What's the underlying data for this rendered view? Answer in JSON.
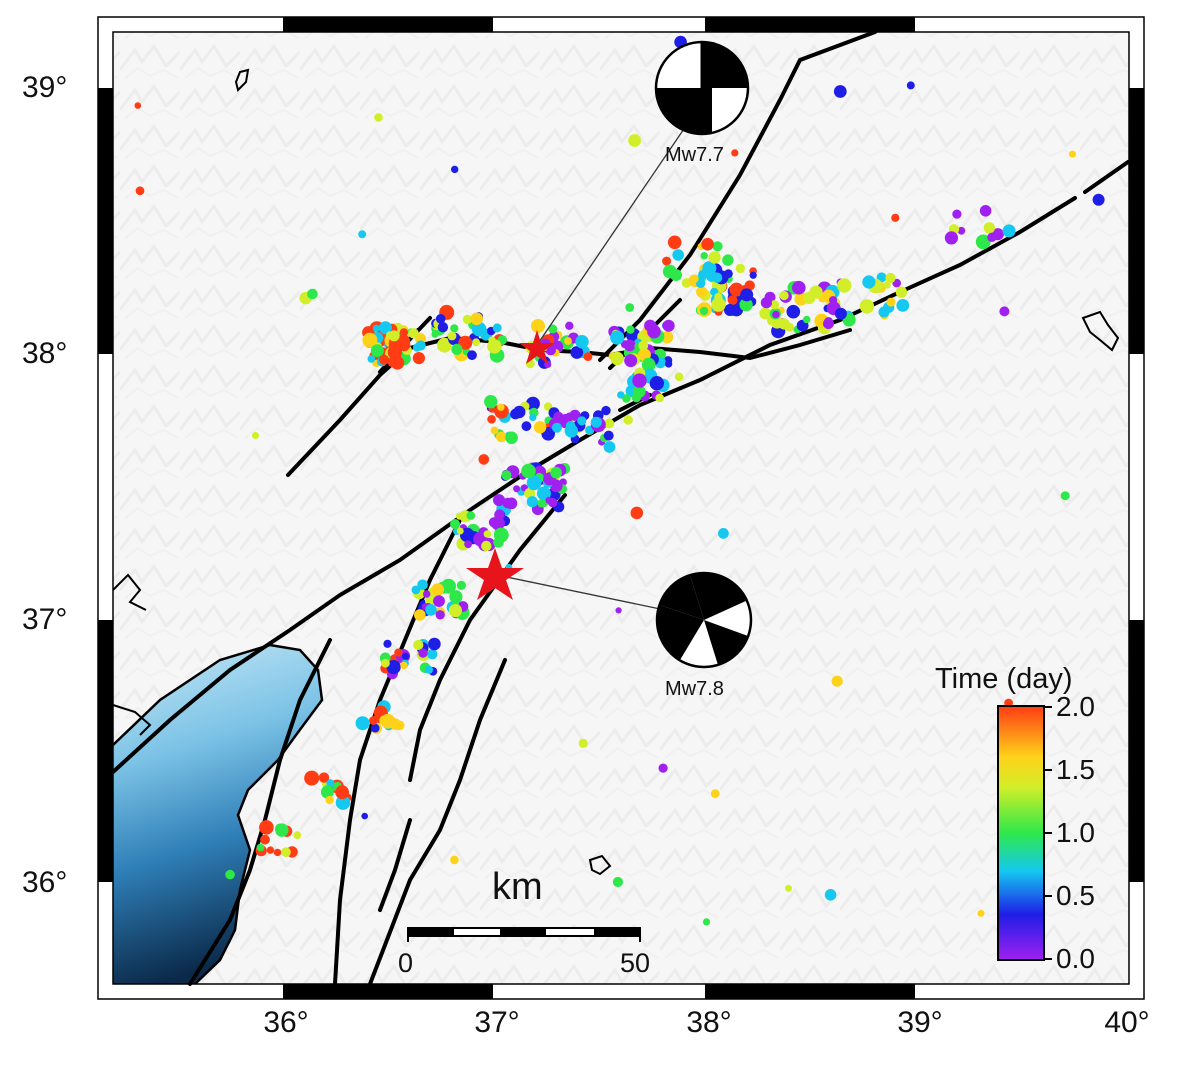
{
  "map": {
    "lat_labels": [
      "39°",
      "38°",
      "37°",
      "36°"
    ],
    "lon_labels": [
      "36°",
      "37°",
      "38°",
      "39°",
      "40°"
    ],
    "lon_range": [
      35.2,
      40.0
    ],
    "lat_range": [
      35.6,
      39.2
    ]
  },
  "mechanisms": [
    {
      "label": "Mw7.7",
      "lon": 37.2,
      "lat": 38.0
    },
    {
      "label": "Mw7.8",
      "lon": 37.0,
      "lat": 37.2
    }
  ],
  "colorbar": {
    "title": "Time (day)",
    "ticks": [
      "2.0",
      "1.5",
      "1.0",
      "0.5",
      "0.0"
    ],
    "range": [
      0,
      2
    ],
    "colors": [
      "#a020f0",
      "#1e1ee6",
      "#15c8f0",
      "#2ee84a",
      "#d2ee28",
      "#ffd21a",
      "#ff3c14"
    ]
  },
  "scalebar": {
    "unit": "km",
    "start": "0",
    "end": "50"
  },
  "colors": {
    "star": "#e8141c",
    "sea_light": "#bfe3f4",
    "sea_dark": "#0b2a4a",
    "fault": "#000000"
  }
}
